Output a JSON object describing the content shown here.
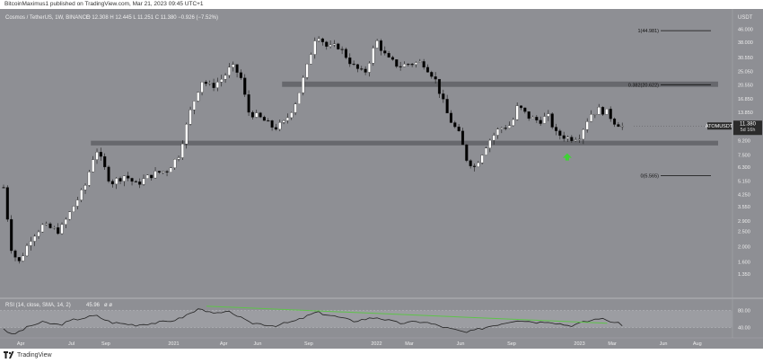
{
  "header": {
    "publisher_text": "BitcoinMaximus1 published on TradingView.com, Mar 21, 2023 09:45 UTC+1"
  },
  "footer": {
    "brand": "TradingView"
  },
  "colors": {
    "background": "#8e8f94",
    "up_candle": "#ffffff",
    "down_candle": "#000000",
    "zone": "#5a5b60",
    "rsi_line": "#222222",
    "trend_line": "#5ec34a",
    "arrow": "#3fd235",
    "fib_line": "#111111",
    "label_bg": "#2b2b2b",
    "label_text": "#ffffff"
  },
  "chart_data": [
    {
      "type": "candlestick",
      "legend": "Cosmos / TetherUS, 1W, BINANCE",
      "ohlc_legend": "O 12.308  H 12.445  L 11.251  C 11.380  −0.926 (−7.52%)",
      "price_unit": "USDT",
      "y_scale": "log",
      "ylim": [
        1.0,
        54
      ],
      "grid": false,
      "x_range": [
        "2020-03-01",
        "2023-09-01"
      ],
      "x_tick_labels": [
        {
          "label": "Apr",
          "date": "2020-04-01"
        },
        {
          "label": "Jul",
          "date": "2020-07-01"
        },
        {
          "label": "Sep",
          "date": "2020-09-01"
        },
        {
          "label": "2021",
          "date": "2021-01-01"
        },
        {
          "label": "Apr",
          "date": "2021-04-01"
        },
        {
          "label": "Jun",
          "date": "2021-06-01"
        },
        {
          "label": "Sep",
          "date": "2021-09-01"
        },
        {
          "label": "2022",
          "date": "2022-01-01"
        },
        {
          "label": "Mar",
          "date": "2022-03-01"
        },
        {
          "label": "Jun",
          "date": "2022-06-01"
        },
        {
          "label": "Sep",
          "date": "2022-09-01"
        },
        {
          "label": "2023",
          "date": "2023-01-01"
        },
        {
          "label": "Mar",
          "date": "2023-03-01"
        },
        {
          "label": "Jun",
          "date": "2023-06-01"
        },
        {
          "label": "Aug",
          "date": "2023-08-01"
        }
      ],
      "y_tick_labels": [
        "46.000",
        "38.000",
        "30.550",
        "25.050",
        "20.550",
        "16.850",
        "13.850",
        "11.350",
        "9.200",
        "7.500",
        "6.300",
        "5.150",
        "4.250",
        "3.550",
        "2.900",
        "2.500",
        "2.000",
        "1.600",
        "1.350"
      ],
      "current_price_label": {
        "symbol": "ATOMUSDT",
        "price": "11.380",
        "countdown": "5d 16h",
        "value": 11.38
      },
      "fib_levels": [
        {
          "label": "1(44.981)",
          "value": 44.981
        },
        {
          "label": "0.382(20.622)",
          "value": 20.622
        },
        {
          "label": "0(5.565)",
          "value": 5.565
        }
      ],
      "horizontal_zones": [
        {
          "from": 8.6,
          "to": 9.2,
          "start_date": "2020-08-05"
        },
        {
          "from": 20.0,
          "to": 21.6,
          "start_date": "2021-07-15"
        }
      ],
      "annotations": [
        {
          "type": "arrow-up",
          "date": "2022-12-10",
          "value": 7.2
        }
      ],
      "anchors": [
        [
          "2020-03-01",
          4.7
        ],
        [
          "2020-03-16",
          1.85
        ],
        [
          "2020-03-29",
          1.6
        ],
        [
          "2020-04-20",
          2.3
        ],
        [
          "2020-05-10",
          2.7
        ],
        [
          "2020-06-10",
          2.5
        ],
        [
          "2020-07-05",
          3.6
        ],
        [
          "2020-07-25",
          4.7
        ],
        [
          "2020-08-14",
          8.3
        ],
        [
          "2020-09-10",
          5.0
        ],
        [
          "2020-10-05",
          5.6
        ],
        [
          "2020-10-25",
          4.9
        ],
        [
          "2020-11-25",
          5.7
        ],
        [
          "2020-12-20",
          6.0
        ],
        [
          "2021-01-10",
          7.5
        ],
        [
          "2021-02-01",
          14.5
        ],
        [
          "2021-02-20",
          22.0
        ],
        [
          "2021-03-10",
          20.0
        ],
        [
          "2021-04-01",
          23.0
        ],
        [
          "2021-04-15",
          27.0
        ],
        [
          "2021-05-01",
          23.5
        ],
        [
          "2021-05-15",
          14.0
        ],
        [
          "2021-06-10",
          12.5
        ],
        [
          "2021-07-01",
          11.0
        ],
        [
          "2021-07-20",
          12.0
        ],
        [
          "2021-08-10",
          16.5
        ],
        [
          "2021-08-28",
          26.0
        ],
        [
          "2021-09-15",
          44.0
        ],
        [
          "2021-10-05",
          35.0
        ],
        [
          "2021-10-25",
          36.0
        ],
        [
          "2021-11-20",
          27.0
        ],
        [
          "2021-12-10",
          24.0
        ],
        [
          "2022-01-01",
          39.0
        ],
        [
          "2022-01-20",
          30.0
        ],
        [
          "2022-02-10",
          27.0
        ],
        [
          "2022-03-01",
          28.0
        ],
        [
          "2022-03-25",
          28.5
        ],
        [
          "2022-04-15",
          23.0
        ],
        [
          "2022-05-10",
          13.0
        ],
        [
          "2022-05-30",
          10.0
        ],
        [
          "2022-06-12",
          7.1
        ],
        [
          "2022-06-26",
          6.3
        ],
        [
          "2022-07-20",
          9.0
        ],
        [
          "2022-08-10",
          11.0
        ],
        [
          "2022-09-01",
          11.6
        ],
        [
          "2022-09-12",
          15.2
        ],
        [
          "2022-10-01",
          13.0
        ],
        [
          "2022-10-20",
          12.2
        ],
        [
          "2022-11-05",
          13.2
        ],
        [
          "2022-11-20",
          10.2
        ],
        [
          "2022-12-15",
          9.5
        ],
        [
          "2023-01-01",
          9.9
        ],
        [
          "2023-01-20",
          13.5
        ],
        [
          "2023-02-05",
          14.4
        ],
        [
          "2023-02-20",
          13.8
        ],
        [
          "2023-03-05",
          12.1
        ],
        [
          "2023-03-20",
          11.38
        ]
      ],
      "rsi": {
        "label": "RSI (14, close, SMA, 14, 2)",
        "value": "45.96",
        "tick_labels": [
          "80.00",
          "40.00"
        ],
        "ylim": [
          20,
          100
        ],
        "bands": [
          40,
          80
        ],
        "anchors": [
          [
            "2020-03-01",
            38
          ],
          [
            "2020-03-16",
            22
          ],
          [
            "2020-04-20",
            45
          ],
          [
            "2020-05-10",
            52
          ],
          [
            "2020-06-10",
            46
          ],
          [
            "2020-07-05",
            58
          ],
          [
            "2020-08-14",
            68
          ],
          [
            "2020-09-10",
            52
          ],
          [
            "2020-10-25",
            46
          ],
          [
            "2020-12-20",
            54
          ],
          [
            "2021-01-10",
            60
          ],
          [
            "2021-02-20",
            86
          ],
          [
            "2021-03-10",
            72
          ],
          [
            "2021-04-15",
            76
          ],
          [
            "2021-05-15",
            52
          ],
          [
            "2021-06-10",
            48
          ],
          [
            "2021-07-01",
            44
          ],
          [
            "2021-08-10",
            56
          ],
          [
            "2021-09-15",
            76
          ],
          [
            "2021-10-25",
            64
          ],
          [
            "2021-11-20",
            55
          ],
          [
            "2022-01-01",
            64
          ],
          [
            "2022-02-10",
            50
          ],
          [
            "2022-03-25",
            54
          ],
          [
            "2022-05-10",
            38
          ],
          [
            "2022-06-12",
            28
          ],
          [
            "2022-07-20",
            42
          ],
          [
            "2022-09-12",
            58
          ],
          [
            "2022-10-20",
            52
          ],
          [
            "2022-11-05",
            55
          ],
          [
            "2022-12-15",
            44
          ],
          [
            "2023-01-20",
            56
          ],
          [
            "2023-02-05",
            62
          ],
          [
            "2023-03-05",
            52
          ],
          [
            "2023-03-20",
            46
          ]
        ],
        "trend_line": [
          [
            "2021-03-01",
            90
          ],
          [
            "2023-02-20",
            50
          ]
        ]
      }
    }
  ]
}
